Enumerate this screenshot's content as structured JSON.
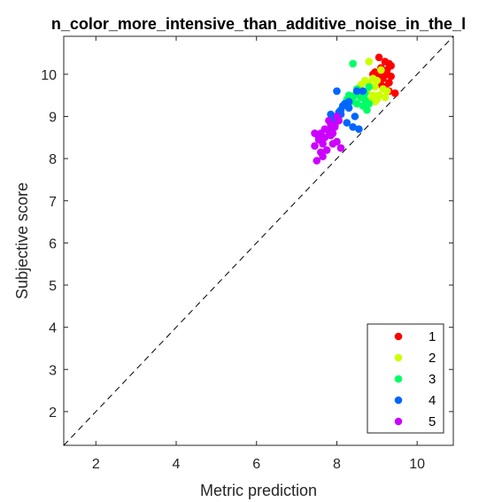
{
  "chart_data": {
    "type": "scatter",
    "title": "n_color_more_intensive_than_additive_noise_in_the_l",
    "xlabel": "Metric prediction",
    "ylabel": "Subjective score",
    "xlim": [
      1.2,
      10.9
    ],
    "ylim": [
      1.2,
      10.9
    ],
    "xticks": [
      2,
      4,
      6,
      8,
      10
    ],
    "yticks": [
      2,
      3,
      4,
      5,
      6,
      7,
      8,
      9,
      10
    ],
    "grid": false,
    "reference_line": {
      "style": "dashed",
      "from": [
        1.2,
        1.2
      ],
      "to": [
        10.9,
        10.9
      ]
    },
    "legend_position": "bottom-right",
    "series": [
      {
        "name": "1",
        "color": "#ff0000",
        "x": [
          9.05,
          9.2,
          9.3,
          9.1,
          8.95,
          9.25,
          9.35,
          9.15,
          9.0,
          9.3,
          9.45,
          9.2,
          9.05,
          9.25,
          9.1,
          9.3,
          8.9,
          9.15,
          9.35,
          9.0
        ],
        "y": [
          10.4,
          10.3,
          10.25,
          10.15,
          10.05,
          10.0,
          9.95,
          9.9,
          9.85,
          9.8,
          9.55,
          9.7,
          9.95,
          10.1,
          9.75,
          9.6,
          10.0,
          10.05,
          10.2,
          9.85
        ]
      },
      {
        "name": "2",
        "color": "#ccff00",
        "x": [
          8.8,
          8.7,
          9.0,
          8.95,
          9.15,
          8.75,
          8.9,
          9.05,
          8.85,
          9.2,
          8.6,
          8.95,
          9.1,
          8.8,
          9.25,
          9.0,
          8.7,
          8.9
        ],
        "y": [
          10.3,
          9.85,
          9.85,
          9.7,
          9.65,
          9.6,
          9.5,
          9.5,
          9.4,
          9.45,
          9.75,
          9.35,
          10.1,
          9.8,
          9.6,
          9.4,
          9.55,
          9.9
        ]
      },
      {
        "name": "3",
        "color": "#00ff66",
        "x": [
          8.4,
          8.55,
          8.45,
          8.6,
          8.7,
          8.35,
          8.5,
          8.8,
          8.65,
          8.25,
          8.75,
          8.55,
          8.4,
          8.6,
          8.3,
          8.8,
          8.5,
          8.7
        ],
        "y": [
          10.25,
          9.6,
          9.5,
          9.45,
          9.4,
          9.35,
          9.3,
          9.3,
          9.25,
          9.4,
          9.15,
          9.55,
          9.45,
          9.6,
          9.5,
          9.7,
          9.65,
          9.55
        ]
      },
      {
        "name": "4",
        "color": "#0066ff",
        "x": [
          8.0,
          8.5,
          8.65,
          8.2,
          8.3,
          8.1,
          7.85,
          8.0,
          8.25,
          7.95,
          8.4,
          8.55,
          8.05,
          8.15,
          8.3,
          7.9,
          8.45,
          8.1
        ],
        "y": [
          9.6,
          9.6,
          9.6,
          9.3,
          9.2,
          9.05,
          9.05,
          8.9,
          8.85,
          8.8,
          8.75,
          8.7,
          9.1,
          9.25,
          9.35,
          8.95,
          9.0,
          9.15
        ]
      },
      {
        "name": "5",
        "color": "#cc00ff",
        "x": [
          7.6,
          7.8,
          7.85,
          7.95,
          8.05,
          7.7,
          7.55,
          7.9,
          8.0,
          7.75,
          7.45,
          7.5,
          7.65,
          7.85,
          8.1,
          7.6,
          7.45,
          7.55,
          7.7,
          8.0,
          7.9,
          7.8,
          7.65,
          7.95
        ],
        "y": [
          8.6,
          8.65,
          8.8,
          8.75,
          8.9,
          8.5,
          8.45,
          8.35,
          8.4,
          8.2,
          8.3,
          7.95,
          8.05,
          8.55,
          8.25,
          8.15,
          8.6,
          8.5,
          8.7,
          9.0,
          8.6,
          8.9,
          8.35,
          8.8
        ]
      }
    ]
  }
}
